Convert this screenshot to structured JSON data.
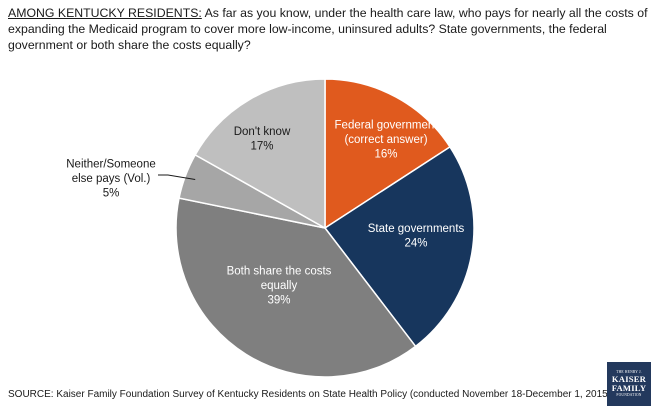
{
  "header": {
    "lead": "AMONG KENTUCKY RESIDENTS:",
    "question": "As far as you know, under the health care law, who pays for nearly all the costs of expanding the Medicaid program to cover more low-income, uninsured adults? State governments, the federal government or both share the costs equally?"
  },
  "chart_data": {
    "type": "pie",
    "title": "",
    "start_angle_deg": 0,
    "direction": "clockwise",
    "slices": [
      {
        "label_lines": [
          "Federal government",
          "(correct answer)",
          "16%"
        ],
        "value": 16,
        "color": "#e05a1e",
        "text_color": "#ffffff"
      },
      {
        "label_lines": [
          "State governments",
          "24%"
        ],
        "value": 24,
        "color": "#17365d",
        "text_color": "#ffffff"
      },
      {
        "label_lines": [
          "Both share the costs",
          "equally",
          "39%"
        ],
        "value": 39,
        "color": "#7f7f7f",
        "text_color": "#ffffff"
      },
      {
        "label_lines": [
          "Neither/Someone",
          "else pays (Vol.)",
          "5%"
        ],
        "value": 5,
        "color": "#a6a6a6",
        "text_color": "#1a1a1a",
        "label_outside": true
      },
      {
        "label_lines": [
          "Don't know",
          "17%"
        ],
        "value": 17,
        "color": "#bfbfbf",
        "text_color": "#1a1a1a"
      }
    ]
  },
  "footer": {
    "source": "SOURCE: Kaiser Family Foundation Survey of Kentucky Residents on State Health Policy (conducted November 18-December 1, 2015)"
  },
  "logo": {
    "line1": "THE HENRY J.",
    "line2": "KAISER",
    "line3": "FAMILY",
    "line4": "FOUNDATION"
  }
}
